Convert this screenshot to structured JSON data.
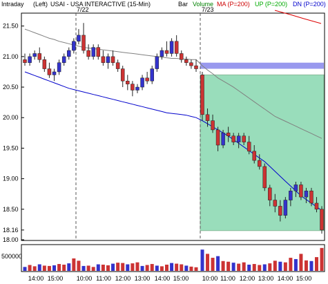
{
  "header": {
    "interval": "Intraday",
    "scale": "(Left)",
    "symbol_title": "USAI - USA INTERACTIVE (15-Min)",
    "style": "Bar",
    "volume": "Volume",
    "ma_legend": "MA (P=200)",
    "up_legend": "UP (P=200)",
    "dn_legend": "DN (P=200)"
  },
  "colors": {
    "up": "#3333cc",
    "down": "#cc3333",
    "ma": "#cc0000",
    "up_line": "#00aa00",
    "dn_line": "#0000cc",
    "blue_band": "#9999ee",
    "green_box": "#99ddbb",
    "grey_line": "#808080"
  },
  "chart_data": {
    "type": "candlestick",
    "title": "USAI - USA INTERACTIVE (15-Min)",
    "y_range": [
      18.0,
      21.7
    ],
    "y_ticks": [
      "21.50",
      "21.00",
      "20.50",
      "20.00",
      "19.50",
      "19.00",
      "18.50",
      "18.16",
      "18.00"
    ],
    "x_ticks": [
      "14:00",
      "15:00",
      "10:00",
      "11:00",
      "12:00",
      "13:00",
      "14:00",
      "15:00",
      "10:00",
      "11:00",
      "12:00",
      "13:00",
      "14:00",
      "15:00"
    ],
    "day_labels": [
      "7/22",
      "7/23"
    ],
    "last_price": 18.16,
    "volume_tick": "500000",
    "candles_day1": [
      [
        20.95,
        21.05,
        20.85,
        20.9
      ],
      [
        20.9,
        21.05,
        20.85,
        21.0
      ],
      [
        21.0,
        21.1,
        20.95,
        21.05
      ],
      [
        21.05,
        21.15,
        20.9,
        20.95
      ],
      [
        20.95,
        21.0,
        20.75,
        20.8
      ],
      [
        20.8,
        20.9,
        20.65,
        20.7
      ],
      [
        20.7,
        20.8,
        20.6,
        20.75
      ],
      [
        20.75,
        20.95,
        20.7,
        20.9
      ],
      [
        20.9,
        21.05,
        20.85,
        21.0
      ],
      [
        21.0,
        21.15,
        20.95,
        21.1
      ],
      [
        21.1,
        21.3,
        21.05,
        21.25
      ],
      [
        21.25,
        21.45,
        21.2,
        21.35
      ],
      [
        21.35,
        21.55,
        21.05,
        21.1
      ],
      [
        21.1,
        21.2,
        20.95,
        21.0
      ],
      [
        21.0,
        21.2,
        20.95,
        21.15
      ],
      [
        21.15,
        21.2,
        20.95,
        21.0
      ],
      [
        21.0,
        21.1,
        20.85,
        20.9
      ],
      [
        20.9,
        21.05,
        20.8,
        21.0
      ],
      [
        21.0,
        21.1,
        20.85,
        20.9
      ],
      [
        20.9,
        20.95,
        20.75,
        20.8
      ],
      [
        20.8,
        20.85,
        20.5,
        20.6
      ],
      [
        20.6,
        20.7,
        20.45,
        20.55
      ],
      [
        20.55,
        20.6,
        20.35,
        20.45
      ],
      [
        20.45,
        20.55,
        20.4,
        20.5
      ],
      [
        20.5,
        20.7,
        20.45,
        20.65
      ],
      [
        20.65,
        20.75,
        20.55,
        20.6
      ],
      [
        20.6,
        20.85,
        20.55,
        20.8
      ],
      [
        20.8,
        21.05,
        20.75,
        21.0
      ],
      [
        21.0,
        21.15,
        20.95,
        21.1
      ],
      [
        21.1,
        21.25,
        21.0,
        21.05
      ],
      [
        21.05,
        21.3,
        21.0,
        21.25
      ],
      [
        21.25,
        21.35,
        21.0,
        21.05
      ],
      [
        21.05,
        21.1,
        20.9,
        20.95
      ],
      [
        20.95,
        21.0,
        20.85,
        20.9
      ],
      [
        20.9,
        20.95,
        20.8,
        20.85
      ],
      [
        20.85,
        20.95,
        20.75,
        20.8
      ]
    ],
    "candles_day2": [
      [
        20.7,
        20.75,
        19.95,
        20.05
      ],
      [
        20.05,
        20.15,
        19.85,
        19.95
      ],
      [
        19.95,
        20.05,
        19.75,
        19.8
      ],
      [
        19.8,
        19.85,
        19.45,
        19.55
      ],
      [
        19.55,
        19.8,
        19.5,
        19.75
      ],
      [
        19.75,
        19.85,
        19.6,
        19.7
      ],
      [
        19.7,
        19.75,
        19.55,
        19.6
      ],
      [
        19.6,
        19.75,
        19.5,
        19.7
      ],
      [
        19.7,
        19.75,
        19.55,
        19.6
      ],
      [
        19.6,
        19.7,
        19.4,
        19.45
      ],
      [
        19.45,
        19.55,
        19.25,
        19.3
      ],
      [
        19.3,
        19.4,
        19.15,
        19.2
      ],
      [
        19.2,
        19.25,
        18.8,
        18.85
      ],
      [
        18.85,
        18.9,
        18.55,
        18.65
      ],
      [
        18.65,
        18.75,
        18.45,
        18.55
      ],
      [
        18.55,
        18.65,
        18.3,
        18.4
      ],
      [
        18.4,
        18.7,
        18.35,
        18.65
      ],
      [
        18.65,
        18.85,
        18.55,
        18.8
      ],
      [
        18.8,
        18.95,
        18.7,
        18.9
      ],
      [
        18.9,
        18.95,
        18.65,
        18.7
      ],
      [
        18.7,
        18.85,
        18.6,
        18.8
      ],
      [
        18.8,
        18.85,
        18.55,
        18.6
      ],
      [
        18.6,
        18.7,
        18.45,
        18.5
      ],
      [
        18.5,
        18.55,
        18.1,
        18.16
      ]
    ],
    "ma_day1": [
      21.45,
      21.42,
      21.39,
      21.36,
      21.33,
      21.3,
      21.28,
      21.25,
      21.23,
      21.21,
      21.19,
      21.17,
      21.15,
      21.14,
      21.13,
      21.12,
      21.11,
      21.1,
      21.09,
      21.08,
      21.07,
      21.06,
      21.05,
      21.04,
      21.03,
      21.02,
      21.01,
      21.0,
      20.99,
      20.98,
      20.97,
      20.97,
      20.96,
      20.96,
      20.95,
      20.95
    ],
    "ma_day2": [
      20.85,
      20.78,
      20.72,
      20.65,
      20.6,
      20.55,
      20.5,
      20.44,
      20.38,
      20.32,
      20.26,
      20.2,
      20.14,
      20.08,
      20.02,
      19.98,
      19.94,
      19.9,
      19.86,
      19.82,
      19.78,
      19.74,
      19.7,
      19.66
    ],
    "dn_day1": [
      20.75,
      20.72,
      20.69,
      20.66,
      20.63,
      20.6,
      20.57,
      20.54,
      20.51,
      20.48,
      20.46,
      20.44,
      20.42,
      20.4,
      20.38,
      20.36,
      20.34,
      20.32,
      20.3,
      20.28,
      20.26,
      20.24,
      20.22,
      20.2,
      20.18,
      20.16,
      20.14,
      20.12,
      20.1,
      20.08,
      20.07,
      20.06,
      20.05,
      20.04,
      20.02,
      20.0
    ],
    "dn_day2": [
      19.95,
      19.9,
      19.85,
      19.8,
      19.75,
      19.7,
      19.64,
      19.58,
      19.52,
      19.46,
      19.4,
      19.34,
      19.28,
      19.2,
      19.12,
      19.04,
      18.96,
      18.88,
      18.8,
      18.72,
      18.66,
      18.6,
      18.54,
      18.48
    ],
    "volume_day1": [
      120000,
      180000,
      140000,
      200000,
      160000,
      150000,
      170000,
      210000,
      190000,
      230000,
      380000,
      310000,
      150000,
      160000,
      120000,
      200000,
      190000,
      170000,
      220000,
      250000,
      240000,
      200000,
      230000,
      260000,
      150000,
      180000,
      210000,
      160000,
      140000,
      190000,
      240000,
      220000,
      200000,
      160000,
      130000,
      110000
    ],
    "volume_day2": [
      650000,
      520000,
      400000,
      450000,
      300000,
      280000,
      250000,
      220000,
      260000,
      190000,
      210000,
      180000,
      200000,
      230000,
      310000,
      280000,
      260000,
      400000,
      360000,
      520000,
      320000,
      300000,
      420000,
      700000
    ]
  }
}
